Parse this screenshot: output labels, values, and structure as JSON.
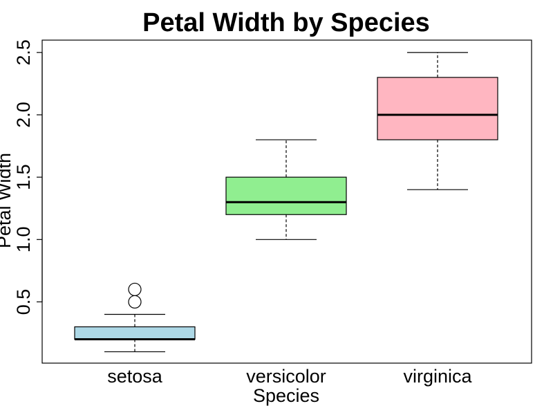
{
  "chart_data": {
    "type": "boxplot",
    "title": "Petal Width by Species",
    "xlabel": "Species",
    "ylabel": "Petal Width",
    "ylim": [
      0.0,
      2.6
    ],
    "yticks": [
      0.5,
      1.0,
      1.5,
      2.0,
      2.5
    ],
    "ytick_labels": [
      "0.5",
      "1.0",
      "1.5",
      "2.0",
      "2.5"
    ],
    "grid": false,
    "legend": "none",
    "categories": [
      "setosa",
      "versicolor",
      "virginica"
    ],
    "boxes": [
      {
        "category": "setosa",
        "color": "#add8e6",
        "whisker_low": 0.1,
        "q1": 0.2,
        "median": 0.2,
        "q3": 0.3,
        "whisker_high": 0.4,
        "outliers": [
          0.5,
          0.6
        ]
      },
      {
        "category": "versicolor",
        "color": "#90ee90",
        "whisker_low": 1.0,
        "q1": 1.2,
        "median": 1.3,
        "q3": 1.5,
        "whisker_high": 1.8,
        "outliers": []
      },
      {
        "category": "virginica",
        "color": "#ffb6c1",
        "whisker_low": 1.4,
        "q1": 1.8,
        "median": 2.0,
        "q3": 2.3,
        "whisker_high": 2.5,
        "outliers": []
      }
    ]
  }
}
